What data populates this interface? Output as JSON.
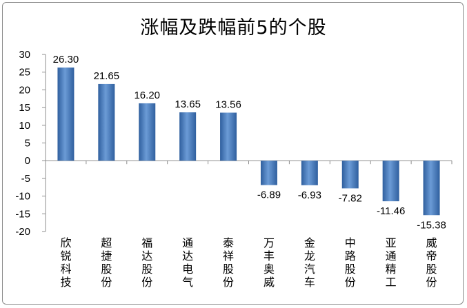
{
  "colors": {
    "bar": "#4a7ebb",
    "bar_light": "#6b9bd6",
    "bar_dark": "#2f5f9e",
    "axis": "#8c8c8c"
  },
  "chart_data": {
    "type": "bar",
    "title": "涨幅及跌幅前5的个股",
    "xlabel": "",
    "ylabel": "",
    "ylim": [
      -20,
      30
    ],
    "yticks": [
      30,
      25,
      20,
      15,
      10,
      5,
      0,
      -5,
      -10,
      -15,
      -20
    ],
    "grid": false,
    "legend": "none",
    "categories": [
      "欣锐科技",
      "超捷股份",
      "福达股份",
      "通达电气",
      "泰祥股份",
      "万丰奥威",
      "金龙汽车",
      "中路股份",
      "亚通精工",
      "威帝股份"
    ],
    "values": [
      26.3,
      21.65,
      16.2,
      13.65,
      13.56,
      -6.89,
      -6.93,
      -7.82,
      -11.46,
      -15.38
    ],
    "value_labels": [
      "26.30",
      "21.65",
      "16.20",
      "13.65",
      "13.56",
      "-6.89",
      "-6.93",
      "-7.82",
      "-11.46",
      "-15.38"
    ]
  }
}
